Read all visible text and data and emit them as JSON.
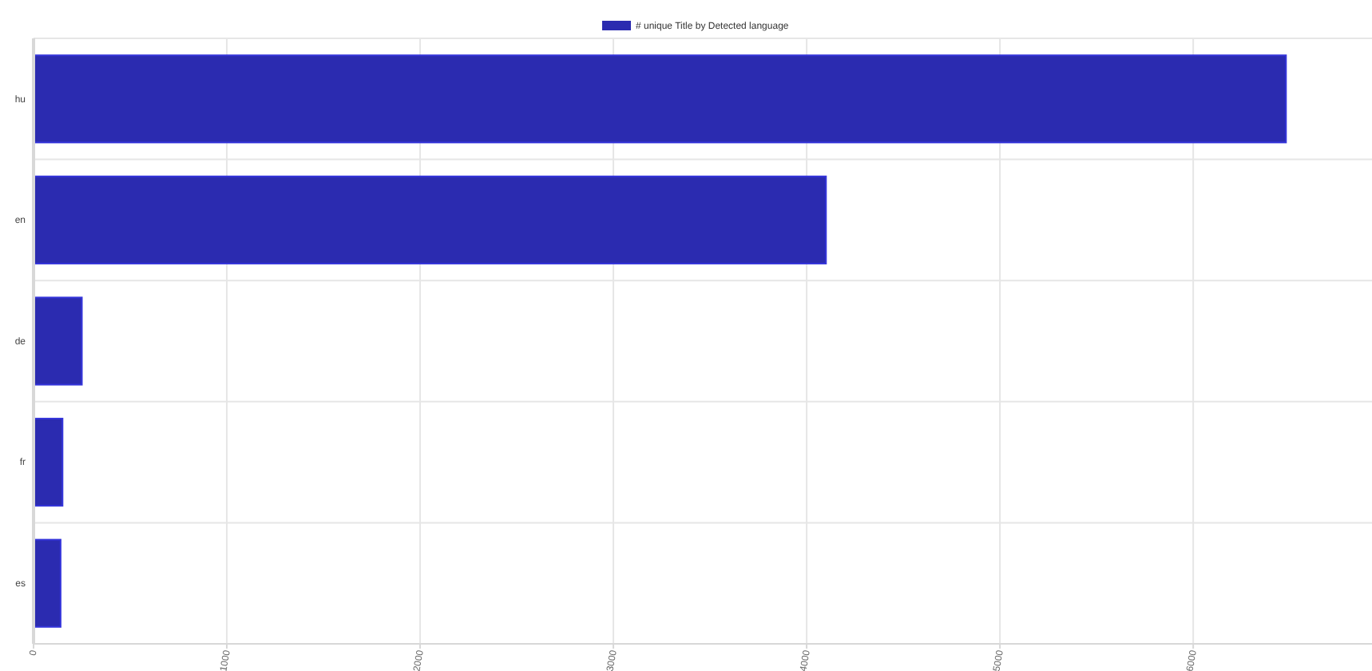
{
  "chart_data": {
    "type": "bar",
    "orientation": "horizontal",
    "categories": [
      "hu",
      "en",
      "de",
      "fr",
      "es"
    ],
    "series": [
      {
        "name": "# unique Title by Detected language",
        "color": "#2b2bb0",
        "values": [
          6480,
          4100,
          250,
          150,
          140
        ]
      }
    ],
    "xlim": [
      0,
      6925
    ],
    "xticks": [
      0,
      1000,
      2000,
      3000,
      4000,
      5000,
      6000
    ],
    "grid": true,
    "legend": "top"
  }
}
